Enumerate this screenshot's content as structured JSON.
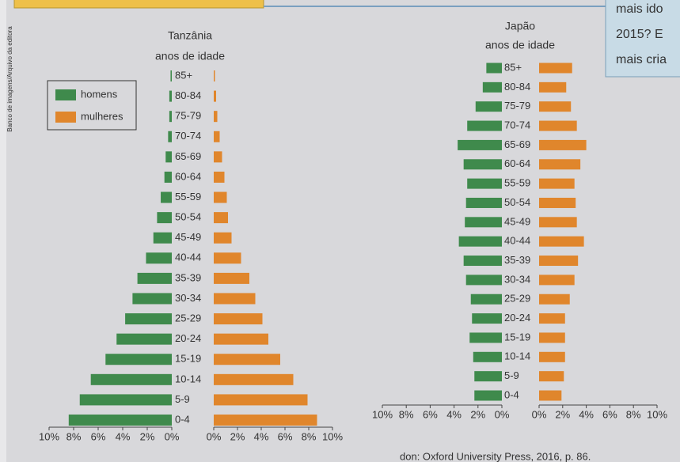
{
  "page": {
    "sidebar": "Banco de imagens/Arquivo da editora",
    "question_lines": [
      "mais ido",
      "2015? E",
      "mais cria"
    ],
    "source": "don: Oxford University Press, 2016, p. 86."
  },
  "chart_data": [
    {
      "type": "pyramid",
      "title": "Tanzânia",
      "subtitle": "anos de idade",
      "legend": "top-left",
      "categories": [
        "0-4",
        "5-9",
        "10-14",
        "15-19",
        "20-24",
        "25-29",
        "30-34",
        "35-39",
        "40-44",
        "45-49",
        "50-54",
        "55-59",
        "60-64",
        "65-69",
        "70-74",
        "75-79",
        "80-84",
        "85+"
      ],
      "series": [
        {
          "name": "homens",
          "color": "#3f8a4c",
          "values": [
            8.4,
            7.5,
            6.6,
            5.4,
            4.5,
            3.8,
            3.2,
            2.8,
            2.1,
            1.5,
            1.2,
            0.9,
            0.6,
            0.5,
            0.3,
            0.2,
            0.2,
            0.1
          ]
        },
        {
          "name": "mulheres",
          "color": "#e0862c",
          "values": [
            8.7,
            7.9,
            6.7,
            5.6,
            4.6,
            4.1,
            3.5,
            3.0,
            2.3,
            1.5,
            1.2,
            1.1,
            0.9,
            0.7,
            0.5,
            0.3,
            0.2,
            0.1
          ]
        }
      ],
      "xlim": [
        0,
        10
      ],
      "xticks": [
        {
          "value": 0,
          "label": "0%"
        },
        {
          "value": 2,
          "label": "2%"
        },
        {
          "value": 4,
          "label": "4%"
        },
        {
          "value": 6,
          "label": "6%"
        },
        {
          "value": 8,
          "label": "8%"
        },
        {
          "value": 10,
          "label": "10%"
        }
      ]
    },
    {
      "type": "pyramid",
      "title": "Japão",
      "subtitle": "anos de idade",
      "categories": [
        "0-4",
        "5-9",
        "10-14",
        "15-19",
        "20-24",
        "25-29",
        "30-34",
        "35-39",
        "40-44",
        "45-49",
        "50-54",
        "55-59",
        "60-64",
        "65-69",
        "70-74",
        "75-79",
        "80-84",
        "85+"
      ],
      "series": [
        {
          "color": "#3f8a4c",
          "values": [
            2.3,
            2.3,
            2.4,
            2.7,
            2.5,
            2.6,
            3.0,
            3.2,
            3.6,
            3.1,
            3.0,
            2.9,
            3.2,
            3.7,
            2.9,
            2.2,
            1.6,
            1.3
          ]
        },
        {
          "color": "#e0862c",
          "values": [
            1.9,
            2.1,
            2.2,
            2.2,
            2.2,
            2.6,
            3.0,
            3.3,
            3.8,
            3.2,
            3.1,
            3.0,
            3.5,
            4.0,
            3.2,
            2.7,
            2.3,
            2.8
          ]
        }
      ],
      "xlim": [
        0,
        10
      ],
      "xticks": [
        {
          "value": 0,
          "label": "0%"
        },
        {
          "value": 2,
          "label": "2%"
        },
        {
          "value": 4,
          "label": "4%"
        },
        {
          "value": 6,
          "label": "6%"
        },
        {
          "value": 8,
          "label": "8%"
        },
        {
          "value": 10,
          "label": "10%"
        }
      ]
    }
  ]
}
